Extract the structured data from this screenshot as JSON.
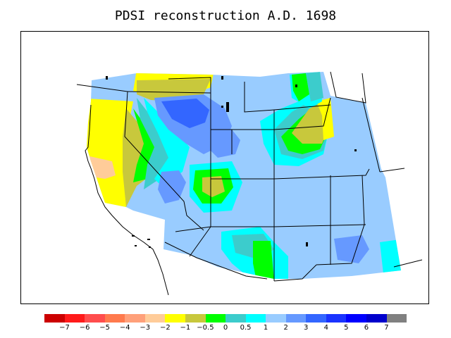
{
  "title": "PDSI reconstruction A.D. 1698",
  "colors": {
    "c_m7": "#cc0000",
    "c_m6": "#ff1a1a",
    "c_m5": "#ff4d4d",
    "c_m4": "#ff7a4d",
    "c_m3": "#ffa07a",
    "c_m2": "#ffcc99",
    "c_m1": "#ffff00",
    "c_m05": "#c8c83c",
    "c_0": "#00ff00",
    "c_05": "#3ccccc",
    "c_1": "#00ffff",
    "c_2": "#99ccff",
    "c_3": "#6699ff",
    "c_4": "#3366ff",
    "c_5": "#1a33ff",
    "c_6": "#0000ff",
    "c_7": "#0000cc",
    "c_over": "#808080"
  },
  "legend": {
    "swatches": [
      "#cc0000",
      "#ff1a1a",
      "#ff4d4d",
      "#ff7a4d",
      "#ffa07a",
      "#ffcc99",
      "#ffff00",
      "#c8c83c",
      "#00ff00",
      "#3ccccc",
      "#00ffff",
      "#99ccff",
      "#6699ff",
      "#3366ff",
      "#1a33ff",
      "#0000ff",
      "#0000cc",
      "#808080"
    ],
    "labels": [
      "−7",
      "−6",
      "−5",
      "−4",
      "−3",
      "−2",
      "−1",
      "−0.5",
      "0",
      "0.5",
      "1",
      "2",
      "3",
      "4",
      "5",
      "6",
      "7"
    ]
  }
}
